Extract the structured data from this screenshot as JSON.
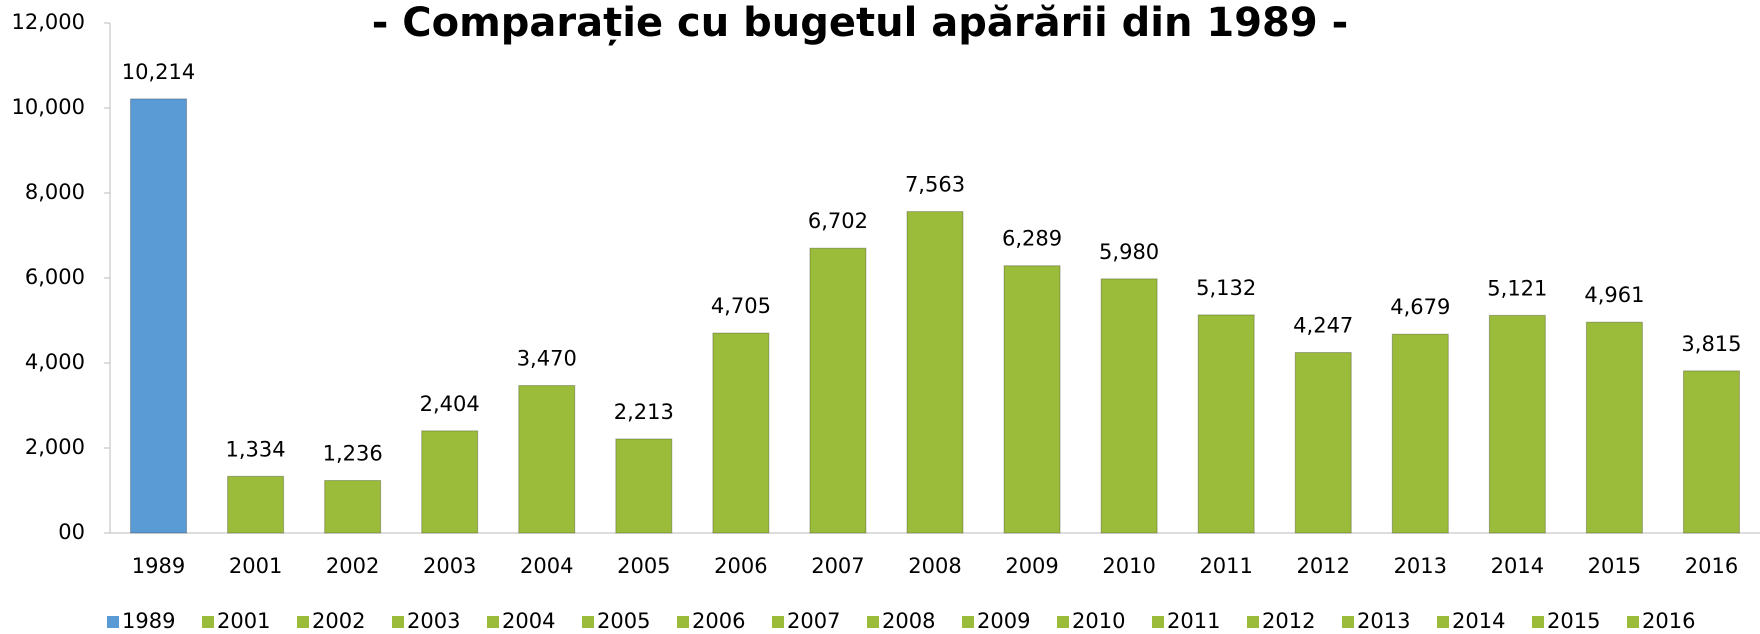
{
  "chart_data": {
    "type": "bar",
    "title": "- Comparație cu bugetul apărării din 1989 -",
    "categories": [
      "1989",
      "2001",
      "2002",
      "2003",
      "2004",
      "2005",
      "2006",
      "2007",
      "2008",
      "2009",
      "2010",
      "2011",
      "2012",
      "2013",
      "2014",
      "2015",
      "2016"
    ],
    "values": [
      10214,
      1334,
      1236,
      2404,
      3470,
      2213,
      4705,
      6702,
      7563,
      6289,
      5980,
      5132,
      4247,
      4679,
      5121,
      4961,
      3815
    ],
    "value_labels": [
      "10,214",
      "1,334",
      "1,236",
      "2,404",
      "3,470",
      "2,213",
      "4,705",
      "6,702",
      "7,563",
      "6,289",
      "5,980",
      "5,132",
      "4,247",
      "4,679",
      "5,121",
      "4,961",
      "3,815"
    ],
    "colors": [
      "#5b9bd5",
      "#9bbb3b",
      "#9bbb3b",
      "#9bbb3b",
      "#9bbb3b",
      "#9bbb3b",
      "#9bbb3b",
      "#9bbb3b",
      "#9bbb3b",
      "#9bbb3b",
      "#9bbb3b",
      "#9bbb3b",
      "#9bbb3b",
      "#9bbb3b",
      "#9bbb3b",
      "#9bbb3b",
      "#9bbb3b"
    ],
    "ylim": [
      0,
      12000
    ],
    "yticks": [
      {
        "value": 0,
        "label": "00"
      },
      {
        "value": 2000,
        "label": "2,000"
      },
      {
        "value": 4000,
        "label": "4,000"
      },
      {
        "value": 6000,
        "label": "6,000"
      },
      {
        "value": 8000,
        "label": "8,000"
      },
      {
        "value": 10000,
        "label": "10,000"
      },
      {
        "value": 12000,
        "label": "12,000"
      }
    ],
    "legend": "bottom"
  }
}
